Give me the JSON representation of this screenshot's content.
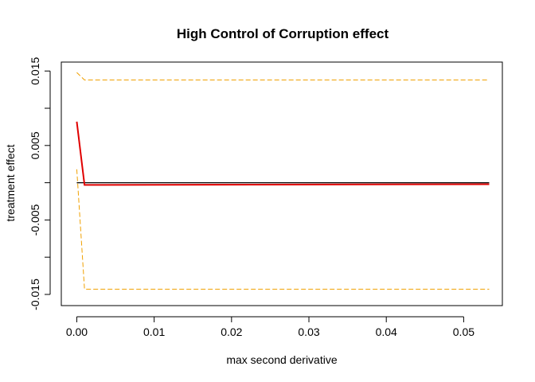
{
  "chart_data": {
    "type": "line",
    "title": "High Control of Corruption effect",
    "xlabel": "max second derivative",
    "ylabel": "treatment effect",
    "xlim": [
      -0.002,
      0.055
    ],
    "ylim": [
      -0.0165,
      0.0162
    ],
    "x_ticks": [
      0.0,
      0.01,
      0.02,
      0.03,
      0.04,
      0.05
    ],
    "x_tick_labels": [
      "0.00",
      "0.01",
      "0.02",
      "0.03",
      "0.04",
      "0.05"
    ],
    "y_ticks": [
      -0.015,
      -0.01,
      -0.005,
      0.0,
      0.005,
      0.01,
      0.015
    ],
    "y_tick_labels": [
      "-0.015",
      "",
      "-0.005",
      "",
      "0.005",
      "",
      "0.015"
    ],
    "grid": false,
    "legend": "none",
    "series": [
      {
        "id": "reference",
        "style": "solid",
        "color": "#000000",
        "x": [
          0.0,
          0.0533
        ],
        "y": [
          0.0,
          0.0
        ]
      },
      {
        "id": "estimate",
        "style": "solid",
        "color": "#e00000",
        "x": [
          0.0,
          0.001,
          0.0022,
          0.0533
        ],
        "y": [
          0.0082,
          -0.0003,
          -0.0003,
          -0.0002
        ]
      },
      {
        "id": "upper",
        "style": "dashed",
        "color": "#f0a000",
        "x": [
          0.0,
          0.001,
          0.0533
        ],
        "y": [
          0.0148,
          0.0138,
          0.0138
        ]
      },
      {
        "id": "lower",
        "style": "dashed",
        "color": "#f0a000",
        "x": [
          0.0,
          0.001,
          0.0533
        ],
        "y": [
          0.0018,
          -0.0143,
          -0.0143
        ]
      }
    ]
  }
}
